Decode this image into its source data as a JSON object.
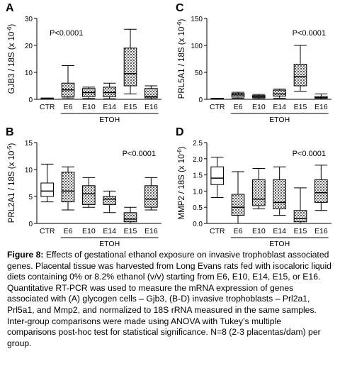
{
  "chart_data": [
    {
      "type": "box",
      "letter": "A",
      "annotation": "P<0.0001",
      "ylabel": "GJB3 / 18S (x 10",
      "ylabel_sup": "-6",
      "ylabel_close": ")",
      "categories": [
        "CTR",
        "E6",
        "E10",
        "E14",
        "E15",
        "E16"
      ],
      "group_label": "ETOH",
      "min": [
        0,
        0.5,
        0.3,
        0.2,
        2,
        0
      ],
      "q1": [
        0.1,
        1,
        1,
        1,
        5,
        0.5
      ],
      "median": [
        0.2,
        3.5,
        2.5,
        2.5,
        9.5,
        1
      ],
      "q3": [
        0.3,
        6,
        4,
        4.5,
        19,
        4
      ],
      "max": [
        0.5,
        12.5,
        4.5,
        6,
        26,
        5
      ],
      "ylim": [
        0,
        30
      ],
      "yticks": [
        0,
        10,
        20,
        30
      ]
    },
    {
      "type": "box",
      "letter": "B",
      "annotation": "P<0.0001",
      "ylabel": "PRL2A1 / 18S (x 10",
      "ylabel_sup": "-5",
      "ylabel_close": ")",
      "categories": [
        "CTR",
        "E6",
        "E10",
        "E14",
        "E15",
        "E16"
      ],
      "group_label": "ETOH",
      "min": [
        4,
        2.5,
        3,
        2,
        0,
        2.5
      ],
      "q1": [
        5,
        4,
        3.5,
        3.5,
        0.3,
        3
      ],
      "median": [
        6,
        6,
        5.5,
        4.5,
        0.8,
        4.5
      ],
      "q3": [
        7.5,
        9.5,
        7,
        5,
        2,
        7
      ],
      "max": [
        11,
        10.5,
        8.5,
        6,
        3,
        8.5
      ],
      "ylim": [
        0,
        15
      ],
      "yticks": [
        0,
        5,
        10,
        15
      ]
    },
    {
      "type": "box",
      "letter": "C",
      "annotation": "P<0.0001",
      "ylabel": "PRL5A1 / 18S (x 10",
      "ylabel_sup": "-6",
      "ylabel_close": ")",
      "categories": [
        "CTR",
        "E6",
        "E10",
        "E14",
        "E15",
        "E16"
      ],
      "group_label": "ETOH",
      "min": [
        0,
        2,
        1,
        2,
        15,
        0
      ],
      "q1": [
        0.5,
        4,
        3,
        6,
        25,
        2
      ],
      "median": [
        1,
        8,
        5,
        10,
        42,
        3
      ],
      "q3": [
        1.5,
        11,
        7,
        17,
        65,
        5
      ],
      "max": [
        2,
        13,
        9,
        19,
        100,
        10
      ],
      "ylim": [
        0,
        150
      ],
      "yticks": [
        0,
        50,
        100,
        150
      ]
    },
    {
      "type": "box",
      "letter": "D",
      "annotation": "P<0.0001",
      "ylabel": "MMP2 / 18S (x 10",
      "ylabel_sup": "-6",
      "ylabel_close": ")",
      "categories": [
        "CTR",
        "E6",
        "E10",
        "E14",
        "E15",
        "E16"
      ],
      "group_label": "ETOH",
      "min": [
        0.8,
        0,
        0.45,
        0.25,
        0,
        0.4
      ],
      "q1": [
        1.2,
        0.25,
        0.55,
        0.45,
        0.05,
        0.65
      ],
      "median": [
        1.4,
        0.5,
        0.75,
        0.65,
        0.15,
        0.95
      ],
      "q3": [
        1.75,
        0.9,
        1.35,
        1.35,
        0.4,
        1.35
      ],
      "max": [
        2.05,
        1.6,
        1.7,
        1.75,
        1.1,
        1.8
      ],
      "ylim": [
        0,
        2.5
      ],
      "yticks": [
        {
          "value": 0,
          "label": "0.0"
        },
        {
          "value": 0.5,
          "label": "0.5"
        },
        {
          "value": 1,
          "label": "1.0"
        },
        {
          "value": 1.5,
          "label": "1.5"
        },
        {
          "value": 2,
          "label": "2.0"
        },
        {
          "value": 2.5,
          "label": "2.5"
        }
      ]
    }
  ],
  "caption_label": "Figure 8:",
  "caption": "Effects of gestational ethanol exposure on invasive trophoblast associated genes. Placental tissue was harvested from Long Evans rats fed with isocaloric liquid diets containing 0% or 8.2% ethanol (v/v) starting from E6, E10, E14, E15, or E16. Quantitative RT-PCR was used to measure the mRNA expression of genes associated with (A) glycogen cells – Gjb3, (B-D) invasive trophoblasts – Prl2a1, Prl5a1, and Mmp2, and normalized to 18S rRNA measured in the same samples. Inter-group comparisons were made using ANOVA with Tukey’s multiple comparisons post-hoc test for statistical significance. N=8 (2-3 placentas/dam) per group."
}
